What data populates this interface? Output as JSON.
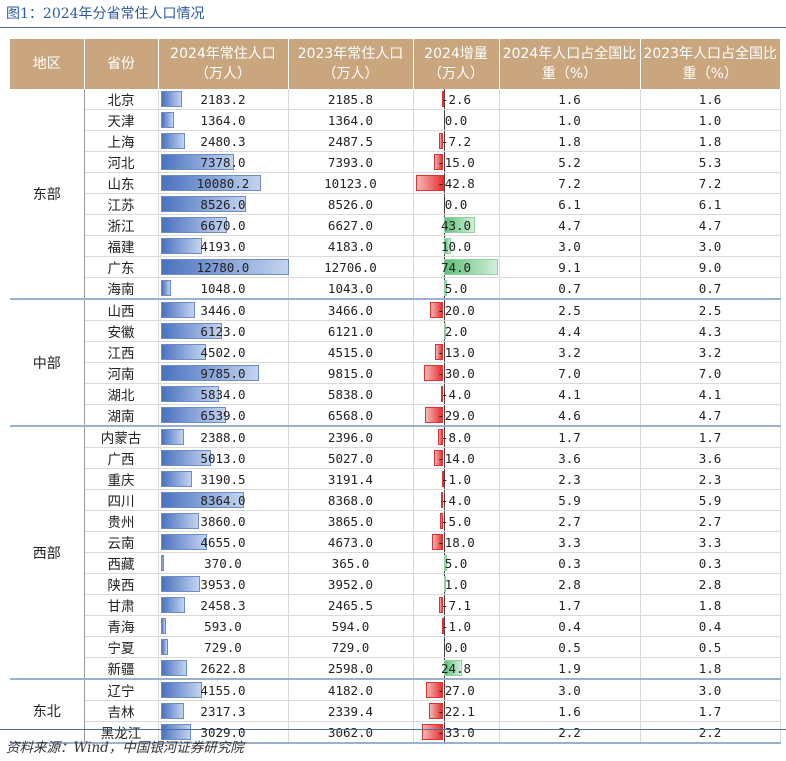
{
  "title": "图1：2024年分省常住人口情况",
  "source": "资料来源：Wind，中国银河证券研究院",
  "colors": {
    "header_bg": "#c9a67e",
    "title_blue": "#2c5aa0",
    "bar_blue": "#4a72c0",
    "bar_red": "#e53030",
    "bar_green": "#5fbf7a"
  },
  "scale": {
    "pop_max": 12780.0,
    "delta_max_abs": 74.0
  },
  "columns": [
    "地区",
    "省份",
    "2024年常住人口（万人）",
    "2023年常住人口（万人）",
    "2024增量（万人）",
    "2024年人口占全国比重（%）",
    "2023年人口占全国比重（%）"
  ],
  "regions": [
    {
      "name": "东部",
      "rows": [
        [
          "北京",
          "2183.2",
          "2185.8",
          "-2.6",
          "1.6",
          "1.6"
        ],
        [
          "天津",
          "1364.0",
          "1364.0",
          "0.0",
          "1.0",
          "1.0"
        ],
        [
          "上海",
          "2480.3",
          "2487.5",
          "-7.2",
          "1.8",
          "1.8"
        ],
        [
          "河北",
          "7378.0",
          "7393.0",
          "-15.0",
          "5.2",
          "5.3"
        ],
        [
          "山东",
          "10080.2",
          "10123.0",
          "-42.8",
          "7.2",
          "7.2"
        ],
        [
          "江苏",
          "8526.0",
          "8526.0",
          "0.0",
          "6.1",
          "6.1"
        ],
        [
          "浙江",
          "6670.0",
          "6627.0",
          "43.0",
          "4.7",
          "4.7"
        ],
        [
          "福建",
          "4193.0",
          "4183.0",
          "10.0",
          "3.0",
          "3.0"
        ],
        [
          "广东",
          "12780.0",
          "12706.0",
          "74.0",
          "9.1",
          "9.0"
        ],
        [
          "海南",
          "1048.0",
          "1043.0",
          "5.0",
          "0.7",
          "0.7"
        ]
      ]
    },
    {
      "name": "中部",
      "rows": [
        [
          "山西",
          "3446.0",
          "3466.0",
          "-20.0",
          "2.5",
          "2.5"
        ],
        [
          "安徽",
          "6123.0",
          "6121.0",
          "2.0",
          "4.4",
          "4.3"
        ],
        [
          "江西",
          "4502.0",
          "4515.0",
          "-13.0",
          "3.2",
          "3.2"
        ],
        [
          "河南",
          "9785.0",
          "9815.0",
          "-30.0",
          "7.0",
          "7.0"
        ],
        [
          "湖北",
          "5834.0",
          "5838.0",
          "-4.0",
          "4.1",
          "4.1"
        ],
        [
          "湖南",
          "6539.0",
          "6568.0",
          "-29.0",
          "4.6",
          "4.7"
        ]
      ]
    },
    {
      "name": "西部",
      "rows": [
        [
          "内蒙古",
          "2388.0",
          "2396.0",
          "-8.0",
          "1.7",
          "1.7"
        ],
        [
          "广西",
          "5013.0",
          "5027.0",
          "-14.0",
          "3.6",
          "3.6"
        ],
        [
          "重庆",
          "3190.5",
          "3191.4",
          "-1.0",
          "2.3",
          "2.3"
        ],
        [
          "四川",
          "8364.0",
          "8368.0",
          "-4.0",
          "5.9",
          "5.9"
        ],
        [
          "贵州",
          "3860.0",
          "3865.0",
          "-5.0",
          "2.7",
          "2.7"
        ],
        [
          "云南",
          "4655.0",
          "4673.0",
          "-18.0",
          "3.3",
          "3.3"
        ],
        [
          "西藏",
          "370.0",
          "365.0",
          "5.0",
          "0.3",
          "0.3"
        ],
        [
          "陕西",
          "3953.0",
          "3952.0",
          "1.0",
          "2.8",
          "2.8"
        ],
        [
          "甘肃",
          "2458.3",
          "2465.5",
          "-7.1",
          "1.7",
          "1.8"
        ],
        [
          "青海",
          "593.0",
          "594.0",
          "-1.0",
          "0.4",
          "0.4"
        ],
        [
          "宁夏",
          "729.0",
          "729.0",
          "0.0",
          "0.5",
          "0.5"
        ],
        [
          "新疆",
          "2622.8",
          "2598.0",
          "24.8",
          "1.9",
          "1.8"
        ]
      ]
    },
    {
      "name": "东北",
      "rows": [
        [
          "辽宁",
          "4155.0",
          "4182.0",
          "-27.0",
          "3.0",
          "3.0"
        ],
        [
          "吉林",
          "2317.3",
          "2339.4",
          "-22.1",
          "1.6",
          "1.7"
        ],
        [
          "黑龙江",
          "3029.0",
          "3062.0",
          "-33.0",
          "2.2",
          "2.2"
        ]
      ]
    }
  ]
}
